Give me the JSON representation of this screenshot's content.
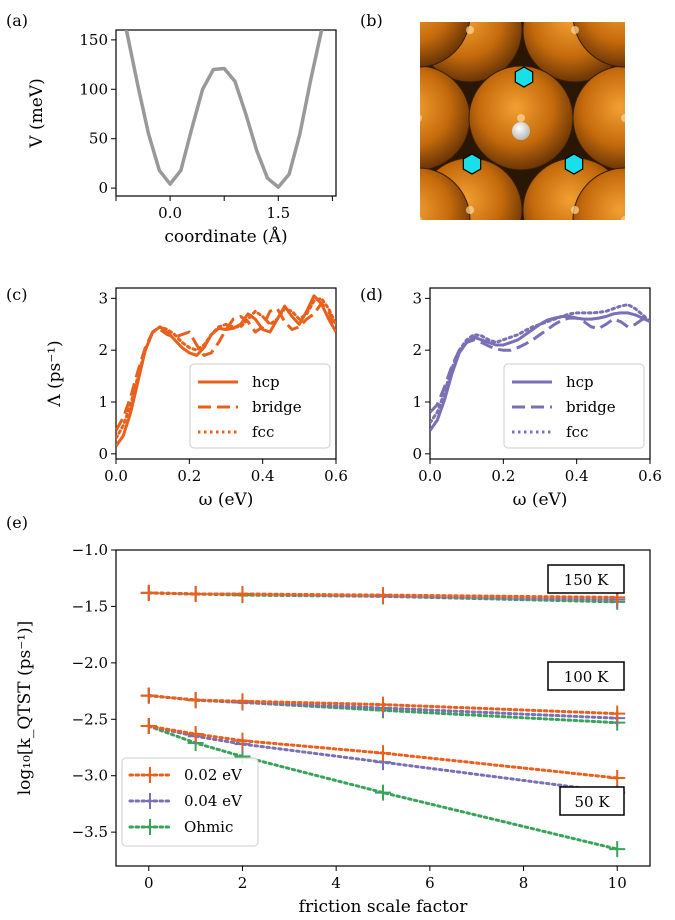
{
  "colors": {
    "orange": "#e8601c",
    "purple": "#7b6fb5",
    "green": "#3aa35a",
    "gray": "#999999",
    "copper": "#c8700f",
    "cyan": "#19e0e8"
  },
  "panel_labels": {
    "a": "(a)",
    "b": "(b)",
    "c": "(c)",
    "d": "(d)",
    "e": "(e)"
  },
  "chart_data": [
    {
      "id": "a",
      "type": "line",
      "xlabel": "coordinate (Å)",
      "ylabel": "V (meV)",
      "xticks": [
        "0.0",
        "1.5"
      ],
      "yticks": [
        "0",
        "50",
        "100",
        "150"
      ],
      "xlim": [
        -0.75,
        2.3
      ],
      "ylim": [
        -8,
        160
      ],
      "series": [
        {
          "x": [
            -0.75,
            -0.6,
            -0.45,
            -0.3,
            -0.15,
            0.0,
            0.15,
            0.3,
            0.45,
            0.6,
            0.75,
            0.9,
            1.05,
            1.2,
            1.35,
            1.5,
            1.65,
            1.8,
            1.95,
            2.1,
            2.25
          ],
          "y": [
            205,
            158,
            105,
            55,
            18,
            4,
            18,
            60,
            100,
            120,
            121,
            108,
            75,
            38,
            10,
            1,
            14,
            55,
            110,
            160,
            210
          ]
        }
      ]
    },
    {
      "id": "c",
      "type": "line",
      "xlabel": "ω (eV)",
      "ylabel": "Λ (ps⁻¹)",
      "xticks": [
        "0.0",
        "0.2",
        "0.4",
        "0.6"
      ],
      "yticks": [
        "0",
        "1",
        "2",
        "3"
      ],
      "xlim": [
        0,
        0.6
      ],
      "ylim": [
        -0.1,
        3.2
      ],
      "legend": "lower-right",
      "series": [
        {
          "name": "hcp",
          "style": "solid",
          "x": [
            0,
            0.02,
            0.04,
            0.06,
            0.08,
            0.1,
            0.12,
            0.14,
            0.16,
            0.18,
            0.2,
            0.22,
            0.24,
            0.26,
            0.28,
            0.3,
            0.32,
            0.34,
            0.36,
            0.38,
            0.4,
            0.42,
            0.44,
            0.46,
            0.48,
            0.5,
            0.52,
            0.54,
            0.56,
            0.58,
            0.6
          ],
          "y": [
            0.15,
            0.35,
            0.8,
            1.4,
            2.0,
            2.35,
            2.45,
            2.35,
            2.2,
            2.05,
            1.95,
            1.9,
            2.05,
            2.3,
            2.42,
            2.4,
            2.42,
            2.5,
            2.7,
            2.6,
            2.4,
            2.35,
            2.6,
            2.85,
            2.65,
            2.5,
            2.75,
            3.05,
            2.9,
            2.6,
            2.35
          ]
        },
        {
          "name": "bridge",
          "style": "dashed",
          "x": [
            0,
            0.02,
            0.04,
            0.06,
            0.08,
            0.1,
            0.12,
            0.14,
            0.16,
            0.18,
            0.2,
            0.22,
            0.24,
            0.26,
            0.28,
            0.3,
            0.32,
            0.34,
            0.36,
            0.38,
            0.4,
            0.42,
            0.44,
            0.46,
            0.48,
            0.5,
            0.52,
            0.54,
            0.56,
            0.58,
            0.6
          ],
          "y": [
            0.45,
            0.7,
            1.1,
            1.6,
            2.05,
            2.35,
            2.4,
            2.3,
            2.25,
            2.3,
            2.35,
            2.1,
            1.9,
            1.95,
            2.15,
            2.4,
            2.6,
            2.65,
            2.55,
            2.35,
            2.45,
            2.75,
            2.8,
            2.55,
            2.4,
            2.45,
            2.6,
            2.7,
            2.9,
            2.75,
            2.4
          ]
        },
        {
          "name": "fcc",
          "style": "dotted",
          "x": [
            0,
            0.02,
            0.04,
            0.06,
            0.08,
            0.1,
            0.12,
            0.14,
            0.16,
            0.18,
            0.2,
            0.22,
            0.24,
            0.26,
            0.28,
            0.3,
            0.32,
            0.34,
            0.36,
            0.38,
            0.4,
            0.42,
            0.44,
            0.46,
            0.48,
            0.5,
            0.52,
            0.54,
            0.56,
            0.58,
            0.6
          ],
          "y": [
            0.3,
            0.55,
            0.95,
            1.5,
            2.0,
            2.35,
            2.45,
            2.4,
            2.3,
            2.15,
            2.05,
            2.0,
            2.1,
            2.3,
            2.45,
            2.5,
            2.45,
            2.45,
            2.6,
            2.75,
            2.65,
            2.5,
            2.6,
            2.8,
            2.75,
            2.6,
            2.7,
            2.95,
            3.0,
            2.8,
            2.5
          ]
        }
      ]
    },
    {
      "id": "d",
      "type": "line",
      "xlabel": "ω (eV)",
      "ylabel": "",
      "xticks": [
        "0.0",
        "0.2",
        "0.4",
        "0.6"
      ],
      "yticks": [
        "0",
        "1",
        "2",
        "3"
      ],
      "xlim": [
        0,
        0.6
      ],
      "ylim": [
        -0.1,
        3.2
      ],
      "legend": "lower-right",
      "series": [
        {
          "name": "hcp",
          "style": "solid",
          "x": [
            0,
            0.02,
            0.04,
            0.06,
            0.08,
            0.1,
            0.12,
            0.14,
            0.16,
            0.18,
            0.2,
            0.22,
            0.24,
            0.26,
            0.28,
            0.3,
            0.32,
            0.34,
            0.36,
            0.38,
            0.4,
            0.42,
            0.44,
            0.46,
            0.48,
            0.5,
            0.52,
            0.54,
            0.56,
            0.58,
            0.6
          ],
          "y": [
            0.45,
            0.65,
            1.05,
            1.55,
            1.95,
            2.15,
            2.25,
            2.2,
            2.15,
            2.1,
            2.1,
            2.15,
            2.2,
            2.3,
            2.4,
            2.5,
            2.58,
            2.62,
            2.65,
            2.65,
            2.62,
            2.6,
            2.6,
            2.62,
            2.65,
            2.7,
            2.72,
            2.72,
            2.68,
            2.62,
            2.55
          ]
        },
        {
          "name": "bridge",
          "style": "dashed",
          "x": [
            0,
            0.02,
            0.04,
            0.06,
            0.08,
            0.1,
            0.12,
            0.14,
            0.16,
            0.18,
            0.2,
            0.22,
            0.24,
            0.26,
            0.28,
            0.3,
            0.32,
            0.34,
            0.36,
            0.38,
            0.4,
            0.42,
            0.44,
            0.46,
            0.48,
            0.5,
            0.52,
            0.54,
            0.56,
            0.58,
            0.6
          ],
          "y": [
            0.8,
            0.95,
            1.3,
            1.7,
            2.0,
            2.15,
            2.2,
            2.15,
            2.08,
            2.02,
            2.0,
            2.0,
            2.05,
            2.12,
            2.2,
            2.3,
            2.4,
            2.5,
            2.58,
            2.62,
            2.62,
            2.55,
            2.45,
            2.42,
            2.5,
            2.6,
            2.55,
            2.45,
            2.5,
            2.6,
            2.62
          ]
        },
        {
          "name": "fcc",
          "style": "dotted",
          "x": [
            0,
            0.02,
            0.04,
            0.06,
            0.08,
            0.1,
            0.12,
            0.14,
            0.16,
            0.18,
            0.2,
            0.22,
            0.24,
            0.26,
            0.28,
            0.3,
            0.32,
            0.34,
            0.36,
            0.38,
            0.4,
            0.42,
            0.44,
            0.46,
            0.48,
            0.5,
            0.52,
            0.54,
            0.56,
            0.58,
            0.6
          ],
          "y": [
            0.6,
            0.8,
            1.2,
            1.65,
            2.0,
            2.2,
            2.3,
            2.28,
            2.2,
            2.15,
            2.2,
            2.25,
            2.3,
            2.38,
            2.45,
            2.5,
            2.55,
            2.6,
            2.65,
            2.7,
            2.72,
            2.72,
            2.72,
            2.73,
            2.75,
            2.8,
            2.85,
            2.88,
            2.8,
            2.68,
            2.55
          ]
        }
      ]
    },
    {
      "id": "e",
      "type": "line",
      "xlabel": "friction scale factor",
      "ylabel": "log₁₀[k_QTST (ps⁻¹)]",
      "xticks": [
        "0",
        "2",
        "4",
        "6",
        "8",
        "10"
      ],
      "yticks": [
        "−1.0",
        "−1.5",
        "−2.0",
        "−2.5",
        "−3.0",
        "−3.5"
      ],
      "xlim": [
        -0.7,
        10.7
      ],
      "ylim": [
        -3.8,
        -1.0
      ],
      "legend": "lower-left",
      "annotations": [
        "150 K",
        "100 K",
        "50 K"
      ],
      "series": [
        {
          "name": "0.02 eV",
          "temperature": "150 K",
          "x": [
            0,
            1,
            2,
            5,
            10
          ],
          "y": [
            -1.38,
            -1.39,
            -1.39,
            -1.4,
            -1.42
          ]
        },
        {
          "name": "0.04 eV",
          "temperature": "150 K",
          "x": [
            0,
            1,
            2,
            5,
            10
          ],
          "y": [
            -1.38,
            -1.39,
            -1.39,
            -1.41,
            -1.44
          ]
        },
        {
          "name": "Ohmic",
          "temperature": "150 K",
          "x": [
            0,
            1,
            2,
            5,
            10
          ],
          "y": [
            -1.38,
            -1.39,
            -1.4,
            -1.41,
            -1.46
          ]
        },
        {
          "name": "0.02 eV",
          "temperature": "100 K",
          "x": [
            0,
            1,
            2,
            5,
            10
          ],
          "y": [
            -2.29,
            -2.33,
            -2.34,
            -2.37,
            -2.45
          ]
        },
        {
          "name": "0.04 eV",
          "temperature": "100 K",
          "x": [
            0,
            1,
            2,
            5,
            10
          ],
          "y": [
            -2.29,
            -2.33,
            -2.35,
            -2.4,
            -2.49
          ]
        },
        {
          "name": "Ohmic",
          "temperature": "100 K",
          "x": [
            0,
            1,
            2,
            5,
            10
          ],
          "y": [
            -2.29,
            -2.33,
            -2.35,
            -2.42,
            -2.53
          ]
        },
        {
          "name": "0.02 eV",
          "temperature": "50 K",
          "x": [
            0,
            1,
            2,
            5,
            10
          ],
          "y": [
            -2.56,
            -2.63,
            -2.69,
            -2.8,
            -3.02
          ]
        },
        {
          "name": "0.04 eV",
          "temperature": "50 K",
          "x": [
            0,
            1,
            2,
            5,
            10
          ],
          "y": [
            -2.56,
            -2.65,
            -2.72,
            -2.88,
            -3.15
          ]
        },
        {
          "name": "Ohmic",
          "temperature": "50 K",
          "x": [
            0,
            1,
            2,
            5,
            10
          ],
          "y": [
            -2.56,
            -2.71,
            -2.83,
            -3.15,
            -3.65
          ]
        }
      ]
    }
  ]
}
